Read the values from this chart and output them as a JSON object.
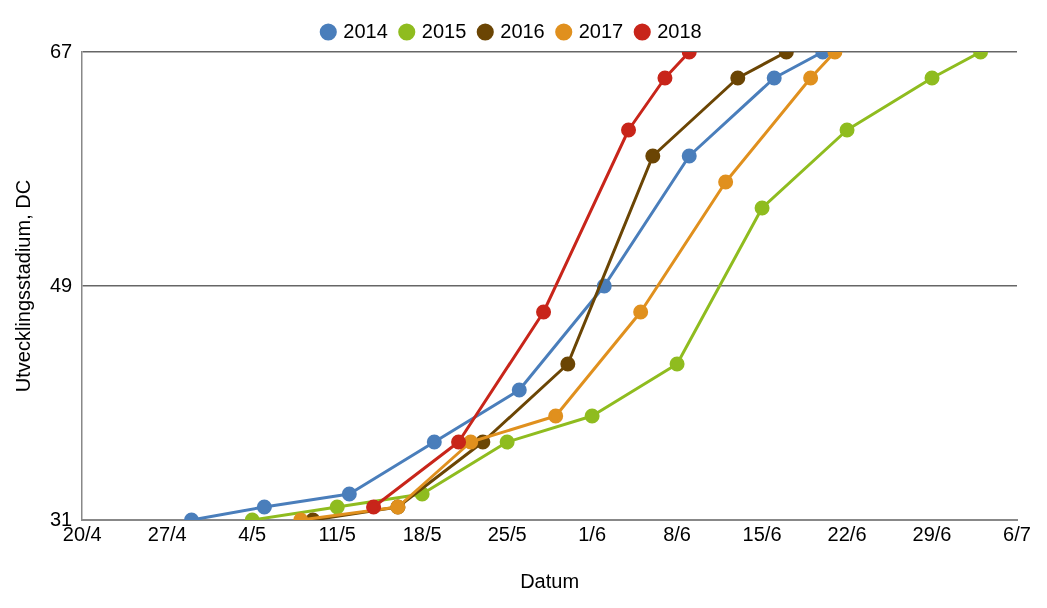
{
  "chart_data": {
    "type": "line",
    "xlabel": "Datum",
    "ylabel": "Utvecklingsstadium, DC",
    "xlim": [
      "--04-20",
      "--07-06"
    ],
    "xticks": [
      {
        "value": "--04-20",
        "label": "20/4"
      },
      {
        "value": "--04-27",
        "label": "27/4"
      },
      {
        "value": "--05-04",
        "label": "4/5"
      },
      {
        "value": "--05-11",
        "label": "11/5"
      },
      {
        "value": "--05-18",
        "label": "18/5"
      },
      {
        "value": "--05-25",
        "label": "25/5"
      },
      {
        "value": "--06-01",
        "label": "1/6"
      },
      {
        "value": "--06-08",
        "label": "8/6"
      },
      {
        "value": "--06-15",
        "label": "15/6"
      },
      {
        "value": "--06-22",
        "label": "22/6"
      },
      {
        "value": "--06-29",
        "label": "29/6"
      },
      {
        "value": "--07-06",
        "label": "6/7"
      }
    ],
    "ylim": [
      31,
      67
    ],
    "yticks": [
      31,
      49,
      67
    ],
    "grid": "y",
    "legend": "top",
    "marker": "circle",
    "line_style": "solid",
    "series": [
      {
        "name": "2014",
        "color": "#4a7ebb",
        "x": [
          "--04-29",
          "--05-05",
          "--05-12",
          "--05-19",
          "--05-26",
          "--06-02",
          "--06-09",
          "--06-16",
          "--06-20"
        ],
        "values": [
          31,
          32,
          33,
          37,
          41,
          49,
          59,
          65,
          67
        ]
      },
      {
        "name": "2015",
        "color": "#8fbc1f",
        "x": [
          "--05-04",
          "--05-11",
          "--05-18",
          "--05-25",
          "--06-01",
          "--06-08",
          "--06-15",
          "--06-22",
          "--06-29",
          "--07-03"
        ],
        "values": [
          31,
          32,
          33,
          37,
          39,
          43,
          55,
          61,
          65,
          67
        ]
      },
      {
        "name": "2016",
        "color": "#6b4504",
        "x": [
          "--05-09",
          "--05-16",
          "--05-23",
          "--05-30",
          "--06-06",
          "--06-13",
          "--06-17"
        ],
        "values": [
          31,
          32,
          37,
          43,
          59,
          65,
          67
        ]
      },
      {
        "name": "2017",
        "color": "#e0901e",
        "x": [
          "--05-08",
          "--05-16",
          "--05-22",
          "--05-29",
          "--06-05",
          "--06-12",
          "--06-19",
          "--06-21"
        ],
        "values": [
          31,
          32,
          37,
          39,
          47,
          57,
          65,
          67
        ]
      },
      {
        "name": "2018",
        "color": "#c8251a",
        "x": [
          "--05-14",
          "--05-21",
          "--05-28",
          "--06-04",
          "--06-07",
          "--06-09"
        ],
        "values": [
          32,
          37,
          47,
          61,
          65,
          67
        ]
      }
    ]
  }
}
